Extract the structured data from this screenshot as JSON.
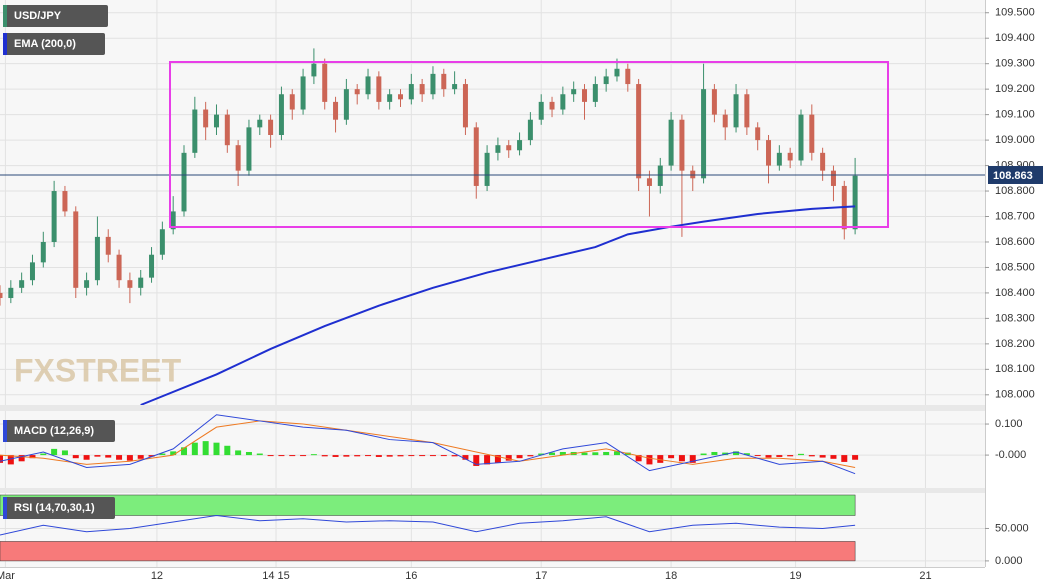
{
  "chart_data": [
    {
      "type": "candlestick",
      "title": "USD/JPY",
      "watermark": "FXSTREET",
      "x": [
        0,
        2,
        4,
        6,
        8,
        10,
        12,
        14,
        16,
        18,
        20,
        22,
        24,
        26,
        28,
        30,
        32,
        34,
        36,
        38,
        40,
        42,
        44,
        46,
        48,
        50,
        52,
        54,
        56,
        58,
        60,
        62,
        64,
        66,
        68,
        70,
        72,
        74,
        76,
        78,
        80,
        82,
        84,
        86,
        88,
        90,
        92,
        94,
        96,
        98,
        100,
        102,
        104,
        106,
        108,
        110,
        112,
        114,
        116,
        118,
        120,
        122,
        124,
        126,
        128,
        130,
        132,
        134,
        136,
        138,
        140,
        142,
        144,
        146,
        148,
        150,
        152,
        154,
        156,
        158
      ],
      "open": [
        108.4,
        108.38,
        108.42,
        108.45,
        108.52,
        108.6,
        108.8,
        108.72,
        108.42,
        108.45,
        108.62,
        108.55,
        108.45,
        108.42,
        108.46,
        108.55,
        108.65,
        108.72,
        108.95,
        109.12,
        109.05,
        109.1,
        108.98,
        108.88,
        109.05,
        109.08,
        109.02,
        109.18,
        109.12,
        109.25,
        109.3,
        109.15,
        109.08,
        109.2,
        109.18,
        109.25,
        109.15,
        109.18,
        109.16,
        109.22,
        109.18,
        109.26,
        109.2,
        109.22,
        109.05,
        108.82,
        108.95,
        108.98,
        108.96,
        109.0,
        109.08,
        109.15,
        109.12,
        109.18,
        109.2,
        109.15,
        109.22,
        109.25,
        109.28,
        109.22,
        108.85,
        108.82,
        108.9,
        109.08,
        108.88,
        108.85,
        109.2,
        109.1,
        109.05,
        109.18,
        109.05,
        109.0,
        108.9,
        108.95,
        108.92,
        109.1,
        108.95,
        108.88,
        108.82,
        108.65
      ],
      "high": [
        108.43,
        108.45,
        108.48,
        108.55,
        108.64,
        108.84,
        108.82,
        108.74,
        108.48,
        108.7,
        108.65,
        108.57,
        108.48,
        108.49,
        108.58,
        108.68,
        108.78,
        108.98,
        109.17,
        109.15,
        109.14,
        109.12,
        109.0,
        109.08,
        109.1,
        109.1,
        109.21,
        109.2,
        109.28,
        109.36,
        109.32,
        109.17,
        109.24,
        109.22,
        109.28,
        109.27,
        109.2,
        109.2,
        109.26,
        109.24,
        109.29,
        109.28,
        109.27,
        109.24,
        109.07,
        108.98,
        109.01,
        109.0,
        109.03,
        109.11,
        109.18,
        109.17,
        109.21,
        109.23,
        109.22,
        109.25,
        109.28,
        109.32,
        109.3,
        109.24,
        108.88,
        108.93,
        109.11,
        109.1,
        108.9,
        109.3,
        109.22,
        109.12,
        109.22,
        109.2,
        109.07,
        109.02,
        108.98,
        108.97,
        109.12,
        109.14,
        108.97,
        108.9,
        108.84,
        108.93
      ],
      "low": [
        108.35,
        108.36,
        108.4,
        108.43,
        108.5,
        108.58,
        108.7,
        108.38,
        108.39,
        108.43,
        108.52,
        108.42,
        108.36,
        108.39,
        108.44,
        108.53,
        108.63,
        108.7,
        108.93,
        109.0,
        109.02,
        108.95,
        108.82,
        108.86,
        109.02,
        108.97,
        109.0,
        109.08,
        109.1,
        109.22,
        109.12,
        109.03,
        109.06,
        109.14,
        109.16,
        109.12,
        109.12,
        109.13,
        109.14,
        109.15,
        109.16,
        109.17,
        109.18,
        109.02,
        108.77,
        108.8,
        108.92,
        108.93,
        108.94,
        108.98,
        109.06,
        109.09,
        109.1,
        109.15,
        109.08,
        109.13,
        109.19,
        109.23,
        109.19,
        108.8,
        108.7,
        108.79,
        108.88,
        108.62,
        108.8,
        108.83,
        109.07,
        109.0,
        109.03,
        109.02,
        108.96,
        108.83,
        108.88,
        108.89,
        108.9,
        108.92,
        108.84,
        108.76,
        108.61,
        108.63
      ],
      "close": [
        108.38,
        108.42,
        108.45,
        108.52,
        108.6,
        108.8,
        108.72,
        108.42,
        108.45,
        108.62,
        108.55,
        108.45,
        108.42,
        108.46,
        108.55,
        108.65,
        108.72,
        108.95,
        109.12,
        109.05,
        109.1,
        108.98,
        108.88,
        109.05,
        109.08,
        109.02,
        109.18,
        109.12,
        109.25,
        109.3,
        109.15,
        109.08,
        109.2,
        109.18,
        109.25,
        109.15,
        109.18,
        109.16,
        109.22,
        109.18,
        109.26,
        109.2,
        109.22,
        109.05,
        108.82,
        108.95,
        108.98,
        108.96,
        109.0,
        109.08,
        109.15,
        109.12,
        109.18,
        109.2,
        109.15,
        109.22,
        109.25,
        109.28,
        109.22,
        108.85,
        108.82,
        108.9,
        109.08,
        108.88,
        108.85,
        109.2,
        109.1,
        109.05,
        109.18,
        109.05,
        109.0,
        108.9,
        108.95,
        108.92,
        109.1,
        108.95,
        108.88,
        108.82,
        108.65,
        108.86
      ],
      "up_color": "#3b8f6c",
      "down_color": "#cc6656",
      "ema": {
        "name": "EMA (200,0)",
        "color": "#1f2fd0",
        "x": [
          26,
          40,
          50,
          60,
          70,
          80,
          90,
          100,
          110,
          116,
          124,
          130,
          140,
          150,
          158
        ],
        "values": [
          107.96,
          108.08,
          108.18,
          108.27,
          108.35,
          108.42,
          108.48,
          108.53,
          108.58,
          108.63,
          108.66,
          108.68,
          108.71,
          108.73,
          108.74
        ]
      },
      "last_price": 108.863,
      "xlim": [
        0,
        182
      ],
      "xticks": [
        {
          "value": 1,
          "label": "Mar"
        },
        {
          "value": 29,
          "label": "12"
        },
        {
          "value": 51,
          "label": "14 15"
        },
        {
          "value": 76,
          "label": "16"
        },
        {
          "value": 100,
          "label": "17"
        },
        {
          "value": 124,
          "label": "18"
        },
        {
          "value": 147,
          "label": "19"
        },
        {
          "value": 171,
          "label": "21"
        }
      ],
      "ylim": [
        107.96,
        109.55
      ],
      "yticks": [
        {
          "value": 108.0,
          "label": "108.000"
        },
        {
          "value": 108.1,
          "label": "108.100"
        },
        {
          "value": 108.2,
          "label": "108.200"
        },
        {
          "value": 108.3,
          "label": "108.300"
        },
        {
          "value": 108.4,
          "label": "108.400"
        },
        {
          "value": 108.5,
          "label": "108.500"
        },
        {
          "value": 108.6,
          "label": "108.600"
        },
        {
          "value": 108.7,
          "label": "108.700"
        },
        {
          "value": 108.8,
          "label": "108.800"
        },
        {
          "value": 108.9,
          "label": "108.900"
        },
        {
          "value": 109.0,
          "label": "109.000"
        },
        {
          "value": 109.1,
          "label": "109.100"
        },
        {
          "value": 109.2,
          "label": "109.200"
        },
        {
          "value": 109.3,
          "label": "109.300"
        },
        {
          "value": 109.4,
          "label": "109.400"
        },
        {
          "value": 109.5,
          "label": "109.500"
        }
      ],
      "grid": true
    },
    {
      "type": "macd",
      "title": "MACD (12,26,9)",
      "x": [
        0,
        2,
        4,
        6,
        8,
        10,
        12,
        14,
        16,
        18,
        20,
        22,
        24,
        26,
        28,
        30,
        32,
        34,
        36,
        38,
        40,
        42,
        44,
        46,
        48,
        50,
        52,
        54,
        56,
        58,
        60,
        62,
        64,
        66,
        68,
        70,
        72,
        74,
        76,
        78,
        80,
        82,
        84,
        86,
        88,
        90,
        92,
        94,
        96,
        98,
        100,
        102,
        104,
        106,
        108,
        110,
        112,
        114,
        116,
        118,
        120,
        122,
        124,
        126,
        128,
        130,
        132,
        134,
        136,
        138,
        140,
        142,
        144,
        146,
        148,
        150,
        152,
        154,
        156,
        158
      ],
      "histogram": [
        -0.025,
        -0.03,
        -0.02,
        -0.01,
        0.005,
        0.02,
        0.015,
        -0.01,
        -0.015,
        -0.005,
        -0.008,
        -0.015,
        -0.018,
        -0.012,
        -0.005,
        0.005,
        0.012,
        0.025,
        0.04,
        0.045,
        0.04,
        0.03,
        0.015,
        0.01,
        0.005,
        -0.002,
        -0.002,
        -0.003,
        -0.002,
        0.003,
        -0.004,
        -0.006,
        -0.005,
        -0.004,
        -0.003,
        -0.006,
        -0.005,
        -0.004,
        -0.003,
        -0.002,
        -0.002,
        -0.003,
        -0.004,
        -0.015,
        -0.035,
        -0.03,
        -0.025,
        -0.018,
        -0.01,
        -0.004,
        0.005,
        0.008,
        0.01,
        0.01,
        0.008,
        0.009,
        0.01,
        0.012,
        0.008,
        -0.02,
        -0.03,
        -0.025,
        -0.01,
        -0.02,
        -0.025,
        0.005,
        0.01,
        0.008,
        0.012,
        0.006,
        -0.002,
        -0.008,
        -0.006,
        -0.004,
        0.004,
        -0.004,
        -0.008,
        -0.012,
        -0.022,
        -0.015
      ],
      "up_color": "#33dd33",
      "down_color": "#ee1111",
      "macd": {
        "color": "#2f48d8",
        "x": [
          0,
          8,
          16,
          24,
          32,
          40,
          48,
          56,
          64,
          72,
          80,
          88,
          96,
          104,
          112,
          120,
          128,
          136,
          144,
          152,
          158
        ],
        "values": [
          -0.02,
          0.01,
          -0.04,
          -0.03,
          0.02,
          0.13,
          0.11,
          0.09,
          0.08,
          0.05,
          0.04,
          -0.03,
          -0.02,
          0.02,
          0.04,
          -0.05,
          -0.02,
          0.01,
          -0.03,
          -0.02,
          -0.06
        ]
      },
      "signal": {
        "color": "#ee7a22",
        "x": [
          0,
          8,
          16,
          24,
          32,
          40,
          48,
          56,
          64,
          72,
          80,
          88,
          96,
          104,
          112,
          120,
          128,
          136,
          144,
          152,
          158
        ],
        "values": [
          0.0,
          -0.01,
          -0.03,
          -0.02,
          0.0,
          0.09,
          0.11,
          0.1,
          0.08,
          0.06,
          0.04,
          0.01,
          -0.02,
          0.0,
          0.02,
          -0.01,
          -0.03,
          -0.01,
          -0.01,
          -0.02,
          -0.04
        ]
      },
      "ylim": [
        -0.106,
        0.142
      ],
      "yticks": [
        {
          "value": 0.1,
          "label": "0.100"
        },
        {
          "value": 0,
          "label": "-0.000"
        }
      ]
    },
    {
      "type": "rsi",
      "title": "RSI (14,70,30,1)",
      "x": [
        0,
        8,
        16,
        24,
        32,
        40,
        48,
        56,
        64,
        72,
        80,
        88,
        96,
        104,
        112,
        120,
        128,
        136,
        144,
        152,
        158
      ],
      "values": [
        40,
        55,
        45,
        50,
        60,
        70,
        62,
        65,
        60,
        62,
        60,
        45,
        58,
        62,
        68,
        45,
        55,
        58,
        52,
        50,
        55
      ],
      "color": "#2f48d8",
      "levels": [
        30,
        70
      ],
      "level_colors": [
        "#f77a7a",
        "#7ced7c"
      ],
      "ylim": [
        -9.4,
        104.7
      ],
      "yticks": [
        {
          "value": 50,
          "label": "50.000"
        },
        {
          "value": 0,
          "label": "0.000"
        }
      ]
    }
  ]
}
